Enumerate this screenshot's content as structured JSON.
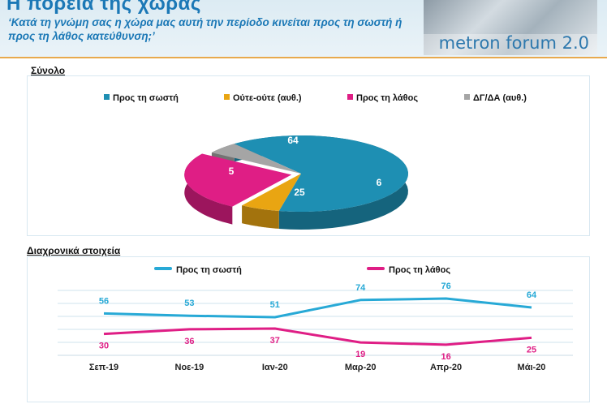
{
  "header": {
    "title": "Η πορεία της χώρας",
    "question": "‘Κατά τη γνώμη σας η χώρα μας αυτή την περίοδο κινείται προς τη σωστή ή προς τη λάθος κατεύθυνση;’",
    "brand": "metron forum 2.0"
  },
  "chart_data": [
    {
      "type": "pie",
      "title": "Σύνολο",
      "legend_position": "top",
      "categories": [
        "Προς τη σωστή",
        "Ούτε-ούτε (αυθ.)",
        "Προς τη λάθος",
        "ΔΓ/ΔΑ (αυθ.)"
      ],
      "values": [
        64,
        6,
        25,
        5
      ],
      "colors": [
        "#1e8fb3",
        "#e9a512",
        "#df1e85",
        "#a5a5a5"
      ]
    },
    {
      "type": "line",
      "title": "Διαχρονικά στοιχεία",
      "legend_position": "top",
      "x": [
        "Σεπ-19",
        "Νοε-19",
        "Ιαν-20",
        "Μαρ-20",
        "Απρ-20",
        "Μάι-20"
      ],
      "series": [
        {
          "name": "Προς τη σωστή",
          "values": [
            56,
            53,
            51,
            74,
            76,
            64
          ],
          "color": "#27a9d6"
        },
        {
          "name": "Προς τη λάθος",
          "values": [
            30,
            36,
            37,
            19,
            16,
            25
          ],
          "color": "#df1e85"
        }
      ],
      "grid": true
    }
  ]
}
